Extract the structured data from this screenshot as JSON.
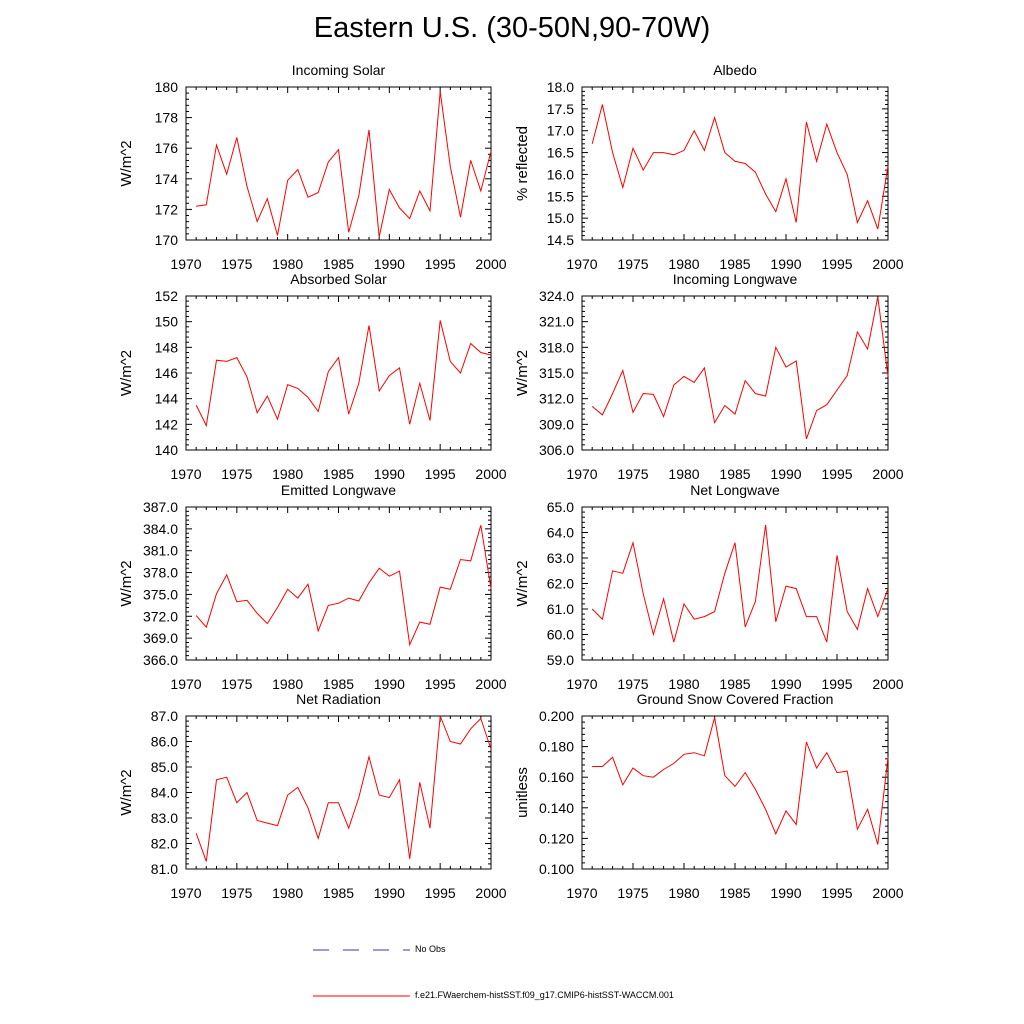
{
  "title": "Eastern U.S. (30-50N,90-70W)",
  "legend": [
    {
      "label": "No Obs",
      "color": "#3a3aa0",
      "dash": true
    },
    {
      "label": "f.e21.FWaerchem-histSST.f09_g17.CMIP6-histSST-WACCM.001",
      "color": "#ff0000",
      "dash": false
    }
  ],
  "chart_data": [
    {
      "type": "line",
      "title": "Incoming Solar",
      "ylabel": "W/m^2",
      "xlim": [
        1970,
        2000
      ],
      "ylim": [
        170,
        180
      ],
      "xticks": [
        "1970",
        "1975",
        "1980",
        "1985",
        "1990",
        "1995",
        "2000"
      ],
      "yticks": [
        "170",
        "172",
        "174",
        "176",
        "178",
        "180"
      ],
      "series": [
        {
          "color": "#ff0000",
          "x": [
            1971,
            1972,
            1973,
            1974,
            1975,
            1976,
            1977,
            1978,
            1979,
            1980,
            1981,
            1982,
            1983,
            1984,
            1985,
            1986,
            1987,
            1988,
            1989,
            1990,
            1991,
            1992,
            1993,
            1994,
            1995,
            1996,
            1997,
            1998,
            1999,
            2000
          ],
          "y": [
            172.2,
            172.3,
            176.2,
            174.3,
            176.7,
            173.5,
            171.2,
            172.7,
            170.3,
            173.9,
            174.6,
            172.8,
            173.1,
            175.1,
            175.9,
            170.5,
            172.9,
            177.2,
            170.2,
            173.3,
            172.1,
            171.4,
            173.2,
            171.9,
            179.7,
            174.8,
            171.5,
            175.2,
            173.2,
            175.8
          ]
        }
      ]
    },
    {
      "type": "line",
      "title": "Albedo",
      "ylabel": "% reflected",
      "xlim": [
        1970,
        2000
      ],
      "ylim": [
        14.5,
        18.0
      ],
      "xticks": [
        "1970",
        "1975",
        "1980",
        "1985",
        "1990",
        "1995",
        "2000"
      ],
      "yticks": [
        "14.5",
        "15.0",
        "15.5",
        "16.0",
        "16.5",
        "17.0",
        "17.5",
        "18.0"
      ],
      "series": [
        {
          "color": "#ff0000",
          "x": [
            1971,
            1972,
            1973,
            1974,
            1975,
            1976,
            1977,
            1978,
            1979,
            1980,
            1981,
            1982,
            1983,
            1984,
            1985,
            1986,
            1987,
            1988,
            1989,
            1990,
            1991,
            1992,
            1993,
            1994,
            1995,
            1996,
            1997,
            1998,
            1999,
            2000
          ],
          "y": [
            16.7,
            17.6,
            16.5,
            15.7,
            16.6,
            16.1,
            16.5,
            16.5,
            16.45,
            16.55,
            17.0,
            16.55,
            17.3,
            16.5,
            16.3,
            16.25,
            16.05,
            15.55,
            15.15,
            15.9,
            14.9,
            17.2,
            16.3,
            17.15,
            16.5,
            16.0,
            14.9,
            15.4,
            14.75,
            16.2
          ]
        }
      ]
    },
    {
      "type": "line",
      "title": "Absorbed Solar",
      "ylabel": "W/m^2",
      "xlim": [
        1970,
        2000
      ],
      "ylim": [
        140,
        152
      ],
      "xticks": [
        "1970",
        "1975",
        "1980",
        "1985",
        "1990",
        "1995",
        "2000"
      ],
      "yticks": [
        "140",
        "142",
        "144",
        "146",
        "148",
        "150",
        "152"
      ],
      "series": [
        {
          "color": "#ff0000",
          "x": [
            1971,
            1972,
            1973,
            1974,
            1975,
            1976,
            1977,
            1978,
            1979,
            1980,
            1981,
            1982,
            1983,
            1984,
            1985,
            1986,
            1987,
            1988,
            1989,
            1990,
            1991,
            1992,
            1993,
            1994,
            1995,
            1996,
            1997,
            1998,
            1999,
            2000
          ],
          "y": [
            143.5,
            141.9,
            147.0,
            146.9,
            147.2,
            145.7,
            142.9,
            144.2,
            142.4,
            145.1,
            144.8,
            144.1,
            143.0,
            146.1,
            147.2,
            142.8,
            145.2,
            149.7,
            144.6,
            145.8,
            146.4,
            142.0,
            145.2,
            142.3,
            150.1,
            146.9,
            146.0,
            148.3,
            147.6,
            147.4
          ]
        }
      ]
    },
    {
      "type": "line",
      "title": "Incoming Longwave",
      "ylabel": "W/m^2",
      "xlim": [
        1970,
        2000
      ],
      "ylim": [
        306.0,
        324.0
      ],
      "xticks": [
        "1970",
        "1975",
        "1980",
        "1985",
        "1990",
        "1995",
        "2000"
      ],
      "yticks": [
        "306.0",
        "309.0",
        "312.0",
        "315.0",
        "318.0",
        "321.0",
        "324.0"
      ],
      "series": [
        {
          "color": "#ff0000",
          "x": [
            1971,
            1972,
            1973,
            1974,
            1975,
            1976,
            1977,
            1978,
            1979,
            1980,
            1981,
            1982,
            1983,
            1984,
            1985,
            1986,
            1987,
            1988,
            1989,
            1990,
            1991,
            1992,
            1993,
            1994,
            1995,
            1996,
            1997,
            1998,
            1999,
            2000
          ],
          "y": [
            311.1,
            310.1,
            312.6,
            315.3,
            310.4,
            312.6,
            312.5,
            309.9,
            313.6,
            314.6,
            313.9,
            315.6,
            309.2,
            311.2,
            310.2,
            314.1,
            312.6,
            312.3,
            318.0,
            315.7,
            316.4,
            307.3,
            310.6,
            311.3,
            313.0,
            314.7,
            319.8,
            317.8,
            323.9,
            314.6
          ]
        }
      ]
    },
    {
      "type": "line",
      "title": "Emitted Longwave",
      "ylabel": "W/m^2",
      "xlim": [
        1970,
        2000
      ],
      "ylim": [
        366.0,
        387.0
      ],
      "xticks": [
        "1970",
        "1975",
        "1980",
        "1985",
        "1990",
        "1995",
        "2000"
      ],
      "yticks": [
        "366.0",
        "369.0",
        "372.0",
        "375.0",
        "378.0",
        "381.0",
        "384.0",
        "387.0"
      ],
      "series": [
        {
          "color": "#ff0000",
          "x": [
            1971,
            1972,
            1973,
            1974,
            1975,
            1976,
            1977,
            1978,
            1979,
            1980,
            1981,
            1982,
            1983,
            1984,
            1985,
            1986,
            1987,
            1988,
            1989,
            1990,
            1991,
            1992,
            1993,
            1994,
            1995,
            1996,
            1997,
            1998,
            1999,
            2000
          ],
          "y": [
            372.1,
            370.5,
            375.1,
            377.7,
            374.0,
            374.2,
            372.4,
            371.0,
            373.2,
            375.7,
            374.5,
            376.4,
            370.0,
            373.5,
            373.8,
            374.5,
            374.1,
            376.6,
            378.6,
            377.5,
            378.2,
            368.1,
            371.2,
            370.9,
            376.0,
            375.7,
            379.8,
            379.6,
            384.5,
            375.8
          ]
        }
      ]
    },
    {
      "type": "line",
      "title": "Net Longwave",
      "ylabel": "W/m^2",
      "xlim": [
        1970,
        2000
      ],
      "ylim": [
        59.0,
        65.0
      ],
      "xticks": [
        "1970",
        "1975",
        "1980",
        "1985",
        "1990",
        "1995",
        "2000"
      ],
      "yticks": [
        "59.0",
        "60.0",
        "61.0",
        "62.0",
        "63.0",
        "64.0",
        "65.0"
      ],
      "series": [
        {
          "color": "#ff0000",
          "x": [
            1971,
            1972,
            1973,
            1974,
            1975,
            1976,
            1977,
            1978,
            1979,
            1980,
            1981,
            1982,
            1983,
            1984,
            1985,
            1986,
            1987,
            1988,
            1989,
            1990,
            1991,
            1992,
            1993,
            1994,
            1995,
            1996,
            1997,
            1998,
            1999,
            2000
          ],
          "y": [
            61.0,
            60.6,
            62.5,
            62.4,
            63.6,
            61.6,
            60.0,
            61.4,
            59.7,
            61.2,
            60.6,
            60.7,
            60.9,
            62.4,
            63.6,
            60.3,
            61.3,
            64.3,
            60.5,
            61.9,
            61.8,
            60.7,
            60.7,
            59.7,
            63.1,
            60.9,
            60.2,
            61.8,
            60.7,
            61.8
          ]
        }
      ]
    },
    {
      "type": "line",
      "title": "Net Radiation",
      "ylabel": "W/m^2",
      "xlim": [
        1970,
        2000
      ],
      "ylim": [
        81.0,
        87.0
      ],
      "xticks": [
        "1970",
        "1975",
        "1980",
        "1985",
        "1990",
        "1995",
        "2000"
      ],
      "yticks": [
        "81.0",
        "82.0",
        "83.0",
        "84.0",
        "85.0",
        "86.0",
        "87.0"
      ],
      "series": [
        {
          "color": "#ff0000",
          "x": [
            1971,
            1972,
            1973,
            1974,
            1975,
            1976,
            1977,
            1978,
            1979,
            1980,
            1981,
            1982,
            1983,
            1984,
            1985,
            1986,
            1987,
            1988,
            1989,
            1990,
            1991,
            1992,
            1993,
            1994,
            1995,
            1996,
            1997,
            1998,
            1999,
            2000
          ],
          "y": [
            82.4,
            81.3,
            84.5,
            84.6,
            83.6,
            84.0,
            82.9,
            82.8,
            82.7,
            83.9,
            84.2,
            83.4,
            82.2,
            83.6,
            83.6,
            82.6,
            83.8,
            85.4,
            83.9,
            83.8,
            84.5,
            81.4,
            84.4,
            82.6,
            87.0,
            86.0,
            85.9,
            86.5,
            86.9,
            85.7
          ]
        }
      ]
    },
    {
      "type": "line",
      "title": "Ground Snow Covered Fraction",
      "ylabel": "unitless",
      "xlim": [
        1970,
        2000
      ],
      "ylim": [
        0.1,
        0.2
      ],
      "xticks": [
        "1970",
        "1975",
        "1980",
        "1985",
        "1990",
        "1995",
        "2000"
      ],
      "yticks": [
        "0.100",
        "0.120",
        "0.140",
        "0.160",
        "0.180",
        "0.200"
      ],
      "series": [
        {
          "color": "#ff0000",
          "x": [
            1971,
            1972,
            1973,
            1974,
            1975,
            1976,
            1977,
            1978,
            1979,
            1980,
            1981,
            1982,
            1983,
            1984,
            1985,
            1986,
            1987,
            1988,
            1989,
            1990,
            1991,
            1992,
            1993,
            1994,
            1995,
            1996,
            1997,
            1998,
            1999,
            2000
          ],
          "y": [
            0.167,
            0.167,
            0.173,
            0.155,
            0.166,
            0.161,
            0.16,
            0.165,
            0.169,
            0.175,
            0.176,
            0.174,
            0.199,
            0.161,
            0.154,
            0.163,
            0.152,
            0.139,
            0.123,
            0.138,
            0.129,
            0.183,
            0.166,
            0.176,
            0.163,
            0.164,
            0.126,
            0.139,
            0.116,
            0.173
          ]
        }
      ]
    }
  ]
}
